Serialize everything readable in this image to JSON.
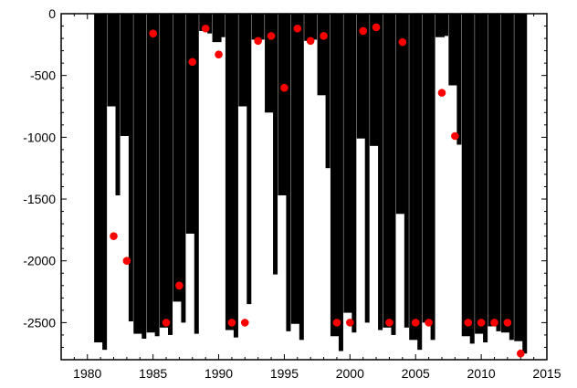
{
  "chart_data": {
    "type": "bar",
    "title": "",
    "xlabel": "",
    "ylabel": "",
    "xlim": [
      1978,
      2015
    ],
    "ylim": [
      -2800,
      0
    ],
    "x_ticks": [
      1980,
      1985,
      1990,
      1995,
      2000,
      2005,
      2010,
      2015
    ],
    "y_ticks": [
      0,
      -500,
      -1000,
      -1500,
      -2000,
      -2500
    ],
    "grid": false,
    "legend": "none",
    "colors": {
      "bars": "#000000",
      "points": "#ff0000",
      "axes": "#000000",
      "background": "#ffffff"
    },
    "bar_series": [
      {
        "x": 1981,
        "wide": -2660,
        "narrow": -2720
      },
      {
        "x": 1982,
        "wide": -750,
        "narrow": -1470
      },
      {
        "x": 1983,
        "wide": -990,
        "narrow": -2490
      },
      {
        "x": 1984,
        "wide": -2590,
        "narrow": -2630
      },
      {
        "x": 1985,
        "wide": -2580,
        "narrow": -2610
      },
      {
        "x": 1986,
        "wide": -2540,
        "narrow": -2600
      },
      {
        "x": 1987,
        "wide": -2330,
        "narrow": -2500
      },
      {
        "x": 1988,
        "wide": -1780,
        "narrow": -2590
      },
      {
        "x": 1989,
        "wide": -140,
        "narrow": -160
      },
      {
        "x": 1990,
        "wide": -230,
        "narrow": -190
      },
      {
        "x": 1991,
        "wide": -2560,
        "narrow": -2620
      },
      {
        "x": 1992,
        "wide": -750,
        "narrow": -2350
      },
      {
        "x": 1993,
        "wide": -210,
        "narrow": -210
      },
      {
        "x": 1994,
        "wide": -800,
        "narrow": -2110
      },
      {
        "x": 1995,
        "wide": -1470,
        "narrow": -2570
      },
      {
        "x": 1996,
        "wide": -2510,
        "narrow": -2640
      },
      {
        "x": 1997,
        "wide": -220,
        "narrow": -210
      },
      {
        "x": 1998,
        "wide": -660,
        "narrow": -1250
      },
      {
        "x": 1999,
        "wide": -2610,
        "narrow": -2730
      },
      {
        "x": 2000,
        "wide": -2420,
        "narrow": -2580
      },
      {
        "x": 2001,
        "wide": -1010,
        "narrow": -2500
      },
      {
        "x": 2002,
        "wide": -1070,
        "narrow": -2560
      },
      {
        "x": 2003,
        "wide": -2540,
        "narrow": -2600
      },
      {
        "x": 2004,
        "wide": -1620,
        "narrow": -2540
      },
      {
        "x": 2005,
        "wide": -2640,
        "narrow": -2720
      },
      {
        "x": 2006,
        "wide": -2500,
        "narrow": -2640
      },
      {
        "x": 2007,
        "wide": -190,
        "narrow": -180
      },
      {
        "x": 2008,
        "wide": -580,
        "narrow": -1060
      },
      {
        "x": 2009,
        "wide": -2610,
        "narrow": -2670
      },
      {
        "x": 2010,
        "wide": -2590,
        "narrow": -2660
      },
      {
        "x": 2011,
        "wide": -2530,
        "narrow": -2570
      },
      {
        "x": 2012,
        "wide": -2580,
        "narrow": -2640
      },
      {
        "x": 2013,
        "wide": -2650,
        "narrow": -2750
      }
    ],
    "points": [
      {
        "x": 1982,
        "y": -1800
      },
      {
        "x": 1983,
        "y": -2000
      },
      {
        "x": 1985,
        "y": -160
      },
      {
        "x": 1986,
        "y": -2500
      },
      {
        "x": 1987,
        "y": -2200
      },
      {
        "x": 1988,
        "y": -390
      },
      {
        "x": 1989,
        "y": -120
      },
      {
        "x": 1990,
        "y": -330
      },
      {
        "x": 1991,
        "y": -2500
      },
      {
        "x": 1992,
        "y": -2500
      },
      {
        "x": 1993,
        "y": -220
      },
      {
        "x": 1994,
        "y": -180
      },
      {
        "x": 1995,
        "y": -600
      },
      {
        "x": 1996,
        "y": -120
      },
      {
        "x": 1997,
        "y": -220
      },
      {
        "x": 1998,
        "y": -180
      },
      {
        "x": 1999,
        "y": -2500
      },
      {
        "x": 2000,
        "y": -2500
      },
      {
        "x": 2001,
        "y": -140
      },
      {
        "x": 2002,
        "y": -110
      },
      {
        "x": 2003,
        "y": -2500
      },
      {
        "x": 2004,
        "y": -230
      },
      {
        "x": 2005,
        "y": -2500
      },
      {
        "x": 2006,
        "y": -2500
      },
      {
        "x": 2007,
        "y": -640
      },
      {
        "x": 2008,
        "y": -990
      },
      {
        "x": 2009,
        "y": -2500
      },
      {
        "x": 2010,
        "y": -2500
      },
      {
        "x": 2011,
        "y": -2500
      },
      {
        "x": 2012,
        "y": -2500
      },
      {
        "x": 2013,
        "y": -2750
      }
    ]
  }
}
